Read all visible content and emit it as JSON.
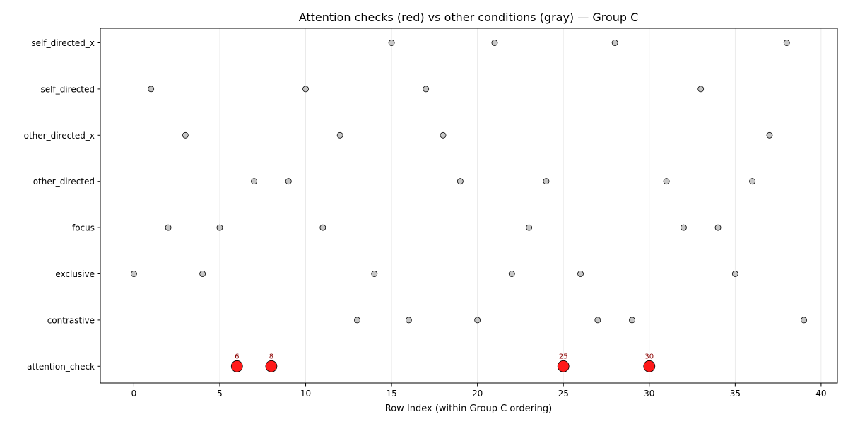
{
  "chart_data": {
    "type": "scatter",
    "title": "Attention checks (red) vs other conditions (gray) — Group C",
    "xlabel": "Row Index (within Group C ordering)",
    "ylabel": "",
    "xlim": [
      -1.95,
      40.95
    ],
    "xticks": [
      0,
      5,
      10,
      15,
      20,
      25,
      30,
      35,
      40
    ],
    "categories": [
      "attention_check",
      "contrastive",
      "exclusive",
      "focus",
      "other_directed",
      "other_directed_x",
      "self_directed",
      "self_directed_x"
    ],
    "grid": "vertical",
    "series": [
      {
        "category": "attention_check",
        "x": [
          6,
          8,
          25,
          30
        ],
        "highlight": true,
        "point_labels": [
          "6",
          "8",
          "25",
          "30"
        ]
      },
      {
        "category": "contrastive",
        "x": [
          13,
          16,
          20,
          27,
          29,
          39
        ],
        "highlight": false
      },
      {
        "category": "exclusive",
        "x": [
          0,
          4,
          14,
          22,
          26,
          35
        ],
        "highlight": false
      },
      {
        "category": "focus",
        "x": [
          2,
          5,
          11,
          23,
          32,
          34
        ],
        "highlight": false
      },
      {
        "category": "other_directed",
        "x": [
          7,
          9,
          19,
          24,
          31,
          36
        ],
        "highlight": false
      },
      {
        "category": "other_directed_x",
        "x": [
          3,
          12,
          18,
          37
        ],
        "highlight": false
      },
      {
        "category": "self_directed",
        "x": [
          1,
          10,
          17,
          33
        ],
        "highlight": false
      },
      {
        "category": "self_directed_x",
        "x": [
          15,
          21,
          28,
          38
        ],
        "highlight": false
      }
    ],
    "colors": {
      "highlight_fill": "#ff1a1a",
      "highlight_label": "#8b0000",
      "normal_fill": "#c8c8c8",
      "edge": "#000000",
      "grid": "#e6e6e6"
    }
  }
}
